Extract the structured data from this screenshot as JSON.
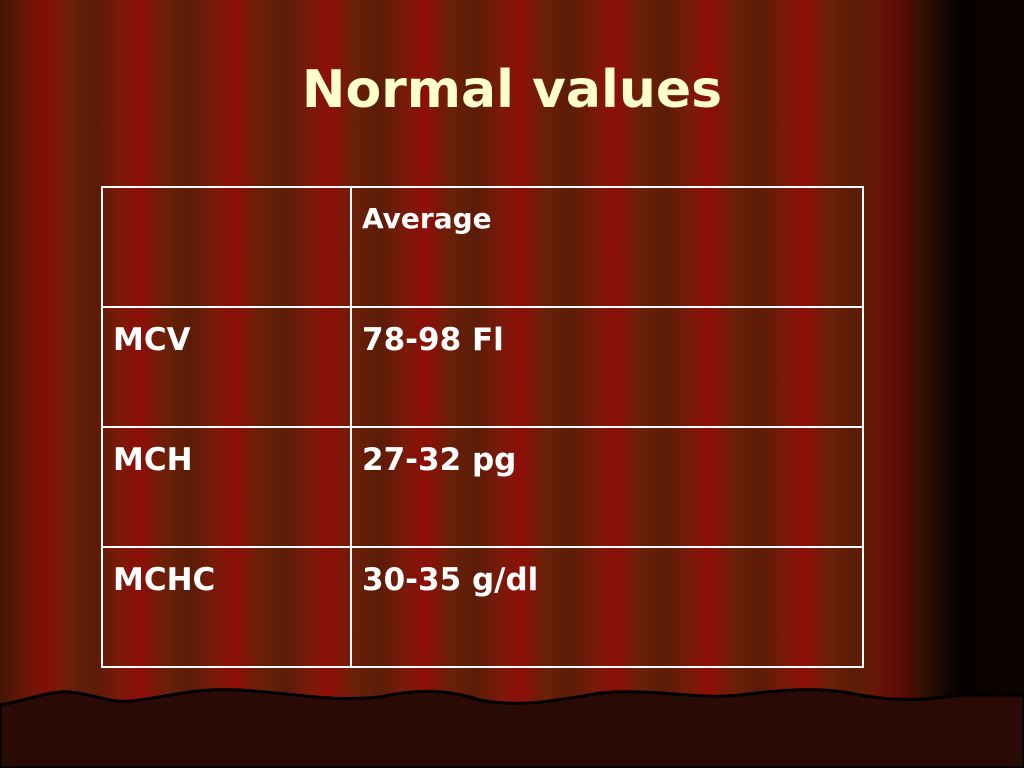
{
  "title": "Normal values",
  "table": {
    "header": "Average",
    "rows": [
      [
        "MCV",
        "78-98 Fl"
      ],
      [
        "MCH",
        "27-32 pg"
      ],
      [
        "MCHC",
        "30-35 g/dl"
      ]
    ]
  }
}
